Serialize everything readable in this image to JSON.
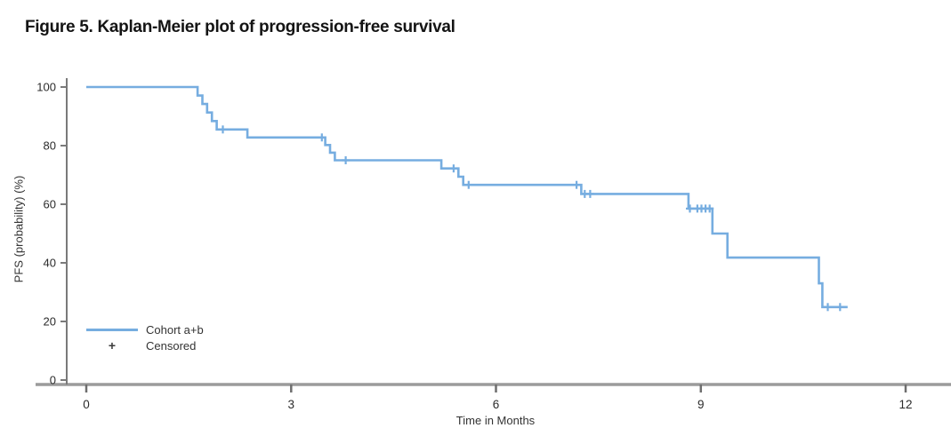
{
  "page": {
    "clipped_top_text": "Time in Months",
    "title": "Figure 5. Kaplan-Meier plot of progression-free survival"
  },
  "legend": {
    "series_label": "Cohort a+b",
    "censored_label": "Censored",
    "censored_marker": "+"
  },
  "chart_data": {
    "type": "line",
    "subtype": "kaplan_meier_step",
    "title": "Figure 5. Kaplan-Meier plot of progression-free survival",
    "xlabel": "Time in Months",
    "ylabel": "PFS (probability) (%)",
    "xlim": [
      0,
      12.6
    ],
    "ylim": [
      0,
      100
    ],
    "xticks": [
      0,
      3,
      6,
      9,
      12
    ],
    "yticks": [
      0,
      20,
      40,
      60,
      80,
      100
    ],
    "grid": false,
    "legend_position": "lower-left",
    "axis_color": "#8c8c8c",
    "text_color": "#2b2b2b",
    "series": [
      {
        "name": "Cohort a+b",
        "color": "#76ADE0",
        "step_points": [
          [
            0,
            100
          ],
          [
            1.63,
            97.1
          ],
          [
            1.7,
            94.2
          ],
          [
            1.77,
            91.3
          ],
          [
            1.84,
            88.4
          ],
          [
            1.91,
            85.5
          ],
          [
            2.36,
            82.8
          ],
          [
            3.5,
            80.2
          ],
          [
            3.57,
            77.6
          ],
          [
            3.64,
            75.0
          ],
          [
            5.2,
            72.2
          ],
          [
            5.45,
            69.4
          ],
          [
            5.52,
            66.6
          ],
          [
            7.25,
            63.5
          ],
          [
            8.82,
            58.5
          ],
          [
            9.17,
            50.0
          ],
          [
            9.39,
            41.8
          ],
          [
            10.73,
            33.0
          ],
          [
            10.78,
            24.9
          ]
        ],
        "end_time": 11.15
      }
    ],
    "censored": {
      "label": "Censored",
      "marker": "+",
      "color": "#76ADE0",
      "points": [
        [
          2.0,
          85.5
        ],
        [
          3.45,
          82.8
        ],
        [
          3.8,
          75.0
        ],
        [
          5.38,
          72.2
        ],
        [
          5.6,
          66.6
        ],
        [
          7.18,
          66.6
        ],
        [
          7.3,
          63.5
        ],
        [
          7.38,
          63.5
        ],
        [
          8.84,
          58.5
        ],
        [
          8.95,
          58.5
        ],
        [
          9.01,
          58.5
        ],
        [
          9.07,
          58.5
        ],
        [
          9.13,
          58.5
        ],
        [
          10.86,
          24.9
        ],
        [
          11.04,
          24.9
        ]
      ]
    }
  }
}
